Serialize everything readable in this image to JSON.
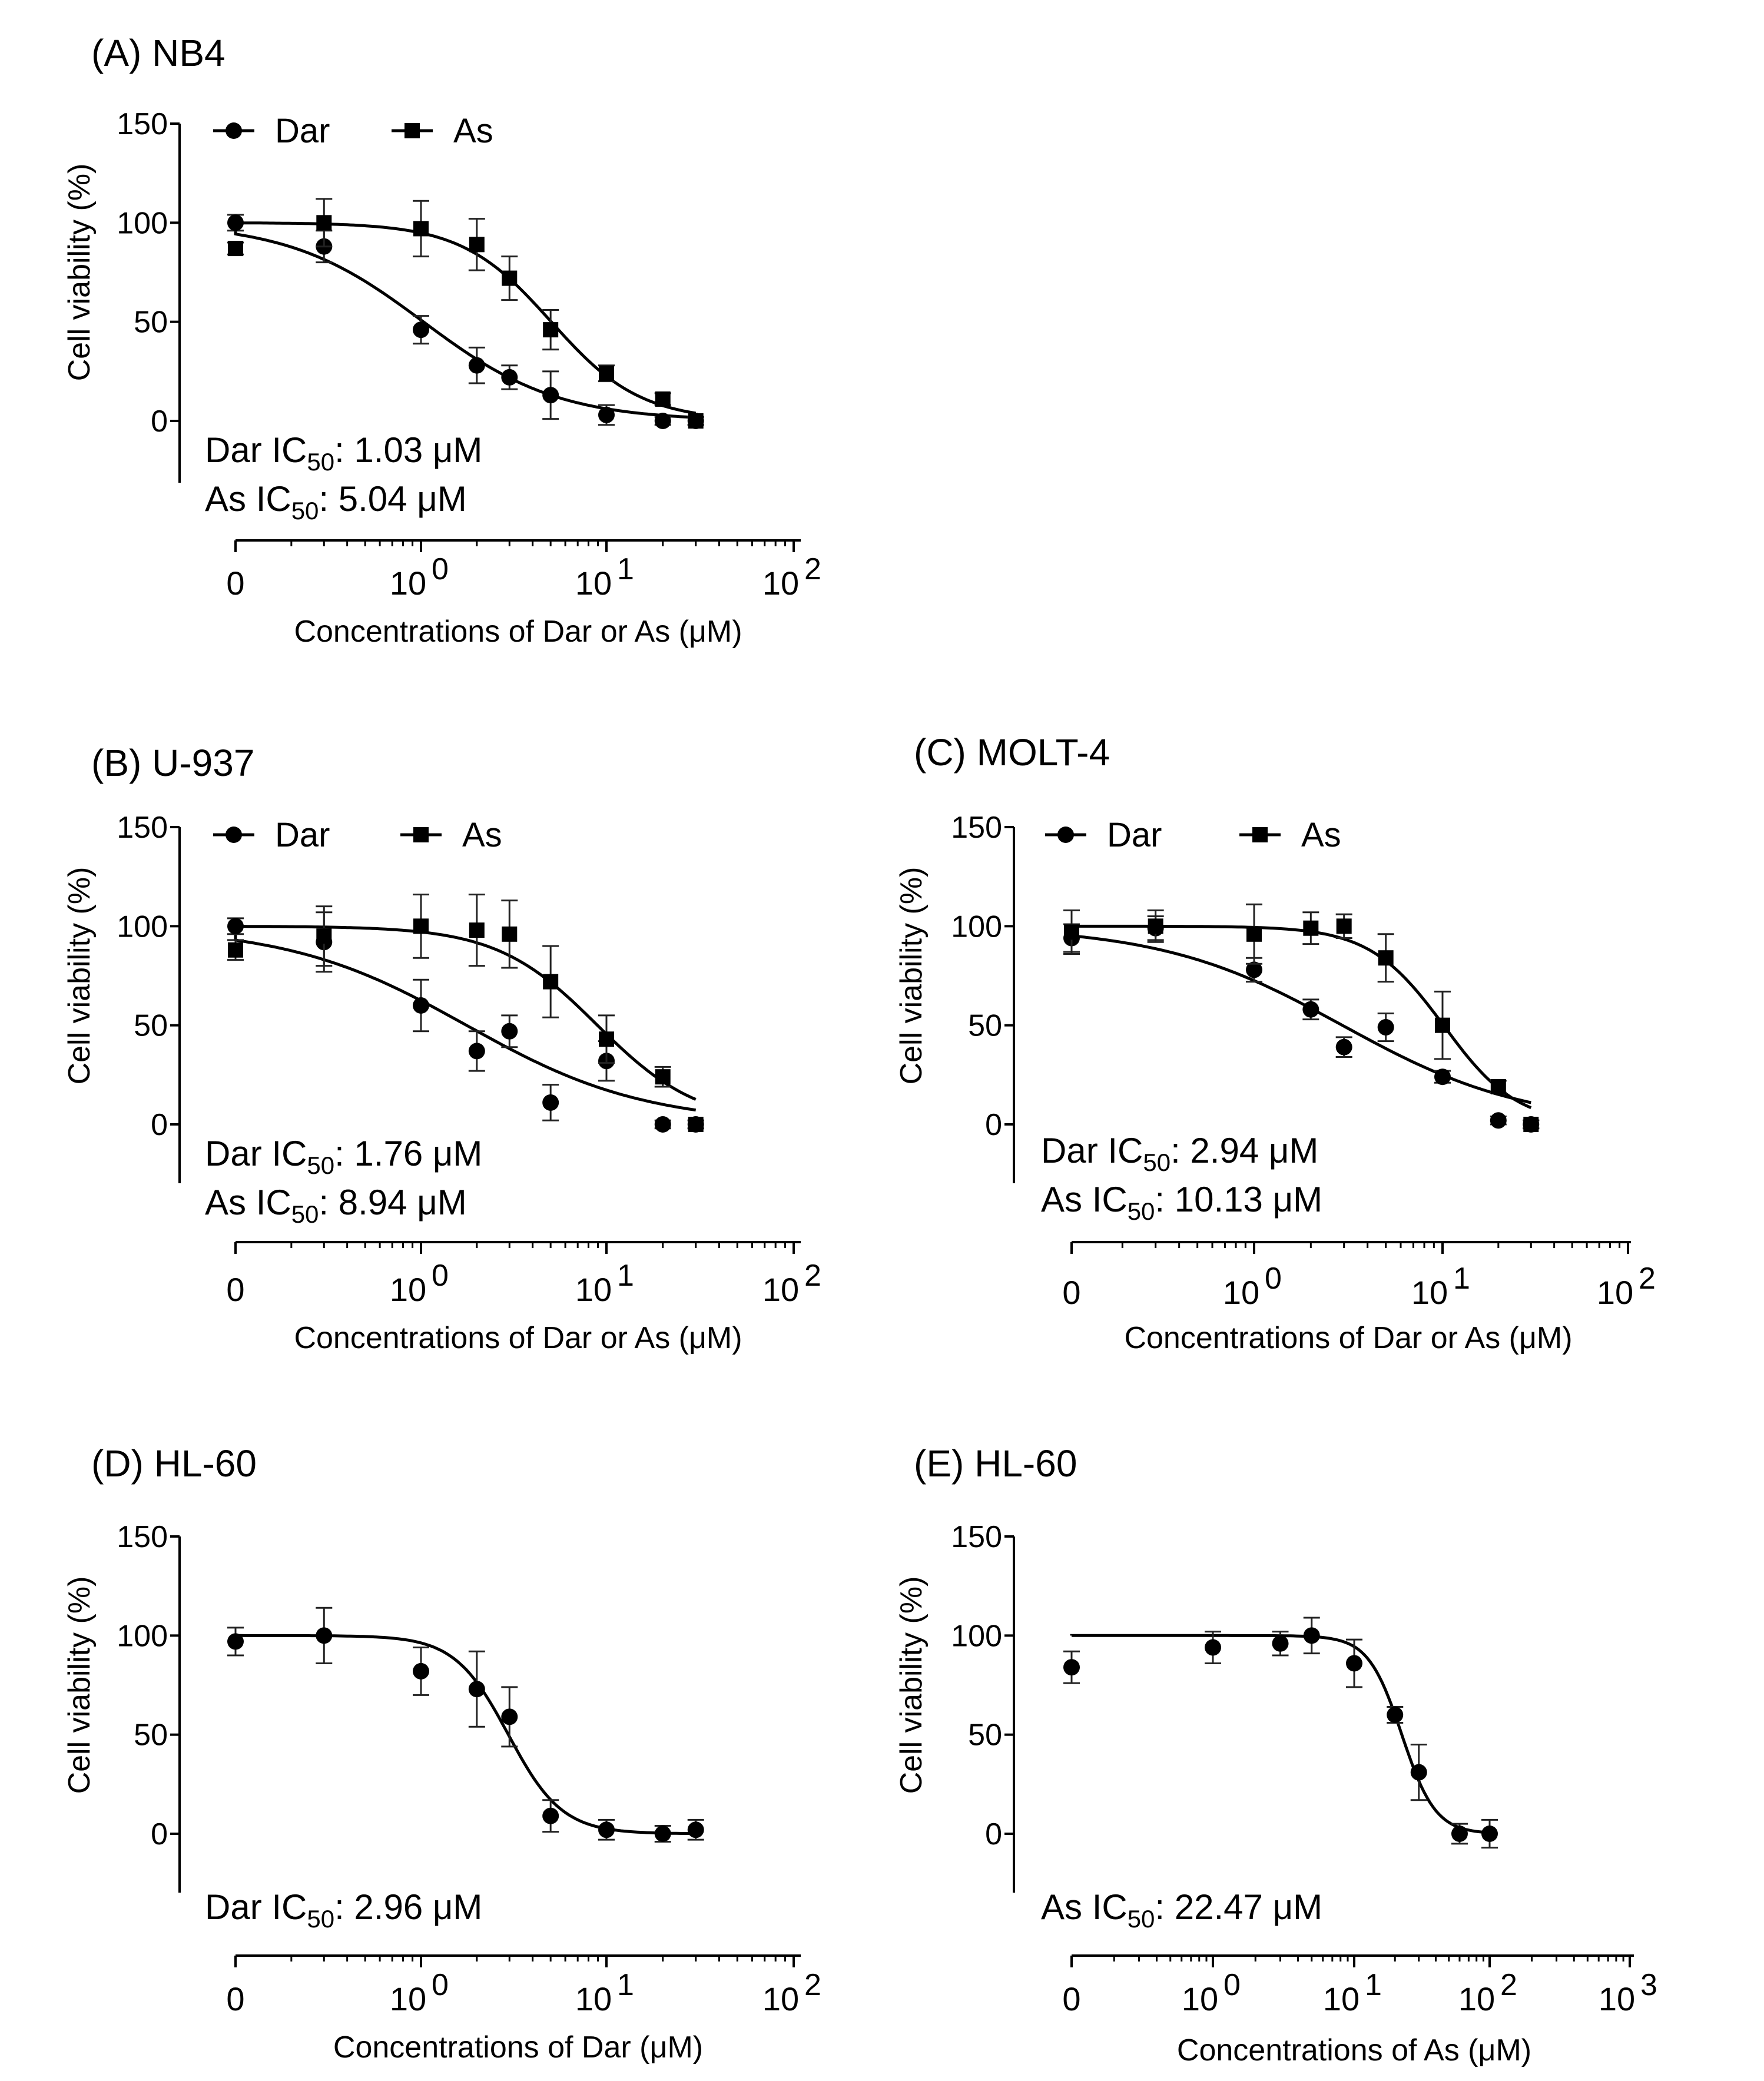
{
  "chart_data": [
    {
      "panel": "(A) NB4",
      "type": "scatter",
      "title": "(A) NB4",
      "xlabel": "Concentrations of Dar or As (μM)",
      "ylabel": "Cell viability (%)",
      "xscale": "log",
      "xticks": [
        "0",
        "10",
        "10",
        "10"
      ],
      "xtick_exponents": [
        "",
        "0",
        "1",
        "2"
      ],
      "yticks": [
        "150",
        "100",
        "50",
        "0"
      ],
      "ylim": [
        -30,
        150
      ],
      "legend": [
        "Dar",
        "As"
      ],
      "series": [
        {
          "name": "Dar",
          "marker": "circle",
          "x": [
            0,
            0.3,
            1,
            2,
            3,
            5,
            10,
            20,
            30
          ],
          "y": [
            100,
            88,
            46,
            28,
            22,
            13,
            3,
            0,
            0
          ],
          "err": [
            4,
            8,
            7,
            9,
            6,
            12,
            5,
            2,
            2
          ],
          "ic50": 1.03,
          "hill": 1.2,
          "ic50_label": "Dar IC",
          "ic50_value": ": 1.03 μM"
        },
        {
          "name": "As",
          "marker": "square",
          "x": [
            0,
            0.3,
            1,
            2,
            3,
            5,
            10,
            20,
            30
          ],
          "y": [
            87,
            100,
            97,
            89,
            72,
            46,
            24,
            11,
            0
          ],
          "err": [
            3,
            12,
            14,
            13,
            11,
            10,
            4,
            3,
            2
          ],
          "ic50": 5.04,
          "hill": 1.8,
          "ic50_label": "As  IC",
          "ic50_value": ": 5.04 μM"
        }
      ]
    },
    {
      "panel": "(B) U-937",
      "type": "scatter",
      "title": "(B) U-937",
      "xlabel": "Concentrations of Dar or As (μM)",
      "ylabel": "Cell viability (%)",
      "xscale": "log",
      "xticks": [
        "0",
        "10",
        "10",
        "10"
      ],
      "xtick_exponents": [
        "",
        "0",
        "1",
        "2"
      ],
      "yticks": [
        "150",
        "100",
        "50",
        "0"
      ],
      "ylim": [
        -30,
        150
      ],
      "legend": [
        "Dar",
        "As"
      ],
      "series": [
        {
          "name": "Dar",
          "marker": "circle",
          "x": [
            0,
            0.3,
            1,
            2,
            3,
            5,
            10,
            20,
            30
          ],
          "y": [
            100,
            92,
            60,
            37,
            47,
            11,
            32,
            0,
            0
          ],
          "err": [
            4,
            15,
            13,
            10,
            8,
            9,
            10,
            2,
            2
          ],
          "ic50": 1.76,
          "hill": 0.9,
          "ic50_label": "Dar IC",
          "ic50_value": ": 1.76 μM"
        },
        {
          "name": "As",
          "marker": "square",
          "x": [
            0,
            0.3,
            1,
            2,
            3,
            5,
            10,
            20,
            30
          ],
          "y": [
            88,
            95,
            100,
            98,
            96,
            72,
            43,
            24,
            0
          ],
          "err": [
            5,
            15,
            16,
            18,
            17,
            18,
            12,
            5,
            2
          ],
          "ic50": 8.94,
          "hill": 1.6,
          "ic50_label": "As  IC",
          "ic50_value": ": 8.94 μM"
        }
      ]
    },
    {
      "panel": "(C) MOLT-4",
      "type": "scatter",
      "title": "(C) MOLT-4",
      "xlabel": "Concentrations of Dar or As (μM)",
      "ylabel": "Cell viability (%)",
      "xscale": "log",
      "xticks": [
        "0",
        "10",
        "10",
        "10"
      ],
      "xtick_exponents": [
        "",
        "0",
        "1",
        "2"
      ],
      "yticks": [
        "150",
        "100",
        "50",
        "0"
      ],
      "ylim": [
        -30,
        150
      ],
      "legend": [
        "Dar",
        "As"
      ],
      "series": [
        {
          "name": "Dar",
          "marker": "circle",
          "x": [
            0,
            0.3,
            1,
            2,
            3,
            5,
            10,
            20,
            30
          ],
          "y": [
            94,
            99,
            78,
            58,
            39,
            49,
            24,
            2,
            0
          ],
          "err": [
            7,
            6,
            6,
            5,
            5,
            7,
            3,
            2,
            2
          ],
          "ic50": 2.94,
          "hill": 0.9,
          "ic50_label": "Dar IC",
          "ic50_value": ":  2.94 μM"
        },
        {
          "name": "As",
          "marker": "square",
          "x": [
            0,
            0.3,
            1,
            2,
            3,
            5,
            10,
            20,
            30
          ],
          "y": [
            97,
            100,
            96,
            99,
            100,
            84,
            50,
            19,
            0
          ],
          "err": [
            11,
            8,
            15,
            8,
            6,
            12,
            17,
            3,
            2
          ],
          "ic50": 10.13,
          "hill": 2.2,
          "ic50_label": "As  IC",
          "ic50_value": ": 10.13 μM"
        }
      ]
    },
    {
      "panel": "(D) HL-60",
      "type": "scatter",
      "title": "(D) HL-60",
      "xlabel": "Concentrations of Dar (μM)",
      "ylabel": "Cell viability (%)",
      "xscale": "log",
      "xticks": [
        "0",
        "10",
        "10",
        "10"
      ],
      "xtick_exponents": [
        "",
        "0",
        "1",
        "2"
      ],
      "yticks": [
        "150",
        "100",
        "50",
        "0"
      ],
      "ylim": [
        -30,
        150
      ],
      "legend": [],
      "series": [
        {
          "name": "Dar",
          "marker": "circle",
          "x": [
            0,
            0.3,
            1,
            2,
            3,
            5,
            10,
            20,
            30
          ],
          "y": [
            97,
            100,
            82,
            73,
            59,
            9,
            2,
            0,
            2
          ],
          "err": [
            7,
            14,
            12,
            19,
            15,
            8,
            5,
            4,
            5
          ],
          "ic50": 2.96,
          "hill": 3.0,
          "ic50_label": "Dar IC",
          "ic50_value": ": 2.96 μM"
        }
      ]
    },
    {
      "panel": "(E) HL-60",
      "type": "scatter",
      "title": "(E) HL-60",
      "xlabel": "Concentrations of As (μM)",
      "ylabel": "Cell viability (%)",
      "xscale": "log",
      "xticks": [
        "0",
        "10",
        "10",
        "10",
        "10"
      ],
      "xtick_exponents": [
        "",
        "0",
        "1",
        "2",
        "3"
      ],
      "yticks": [
        "150",
        "100",
        "50",
        "0"
      ],
      "ylim": [
        -30,
        150
      ],
      "legend": [],
      "series": [
        {
          "name": "As",
          "marker": "circle",
          "x": [
            0,
            1,
            3,
            5,
            10,
            20,
            30,
            60,
            100
          ],
          "y": [
            84,
            94,
            96,
            100,
            86,
            60,
            31,
            0,
            0
          ],
          "err": [
            8,
            8,
            6,
            9,
            12,
            4,
            14,
            5,
            7
          ],
          "ic50": 22.47,
          "hill": 3.5,
          "ic50_label": "As  IC",
          "ic50_value": ": 22.47 μM"
        }
      ]
    }
  ]
}
